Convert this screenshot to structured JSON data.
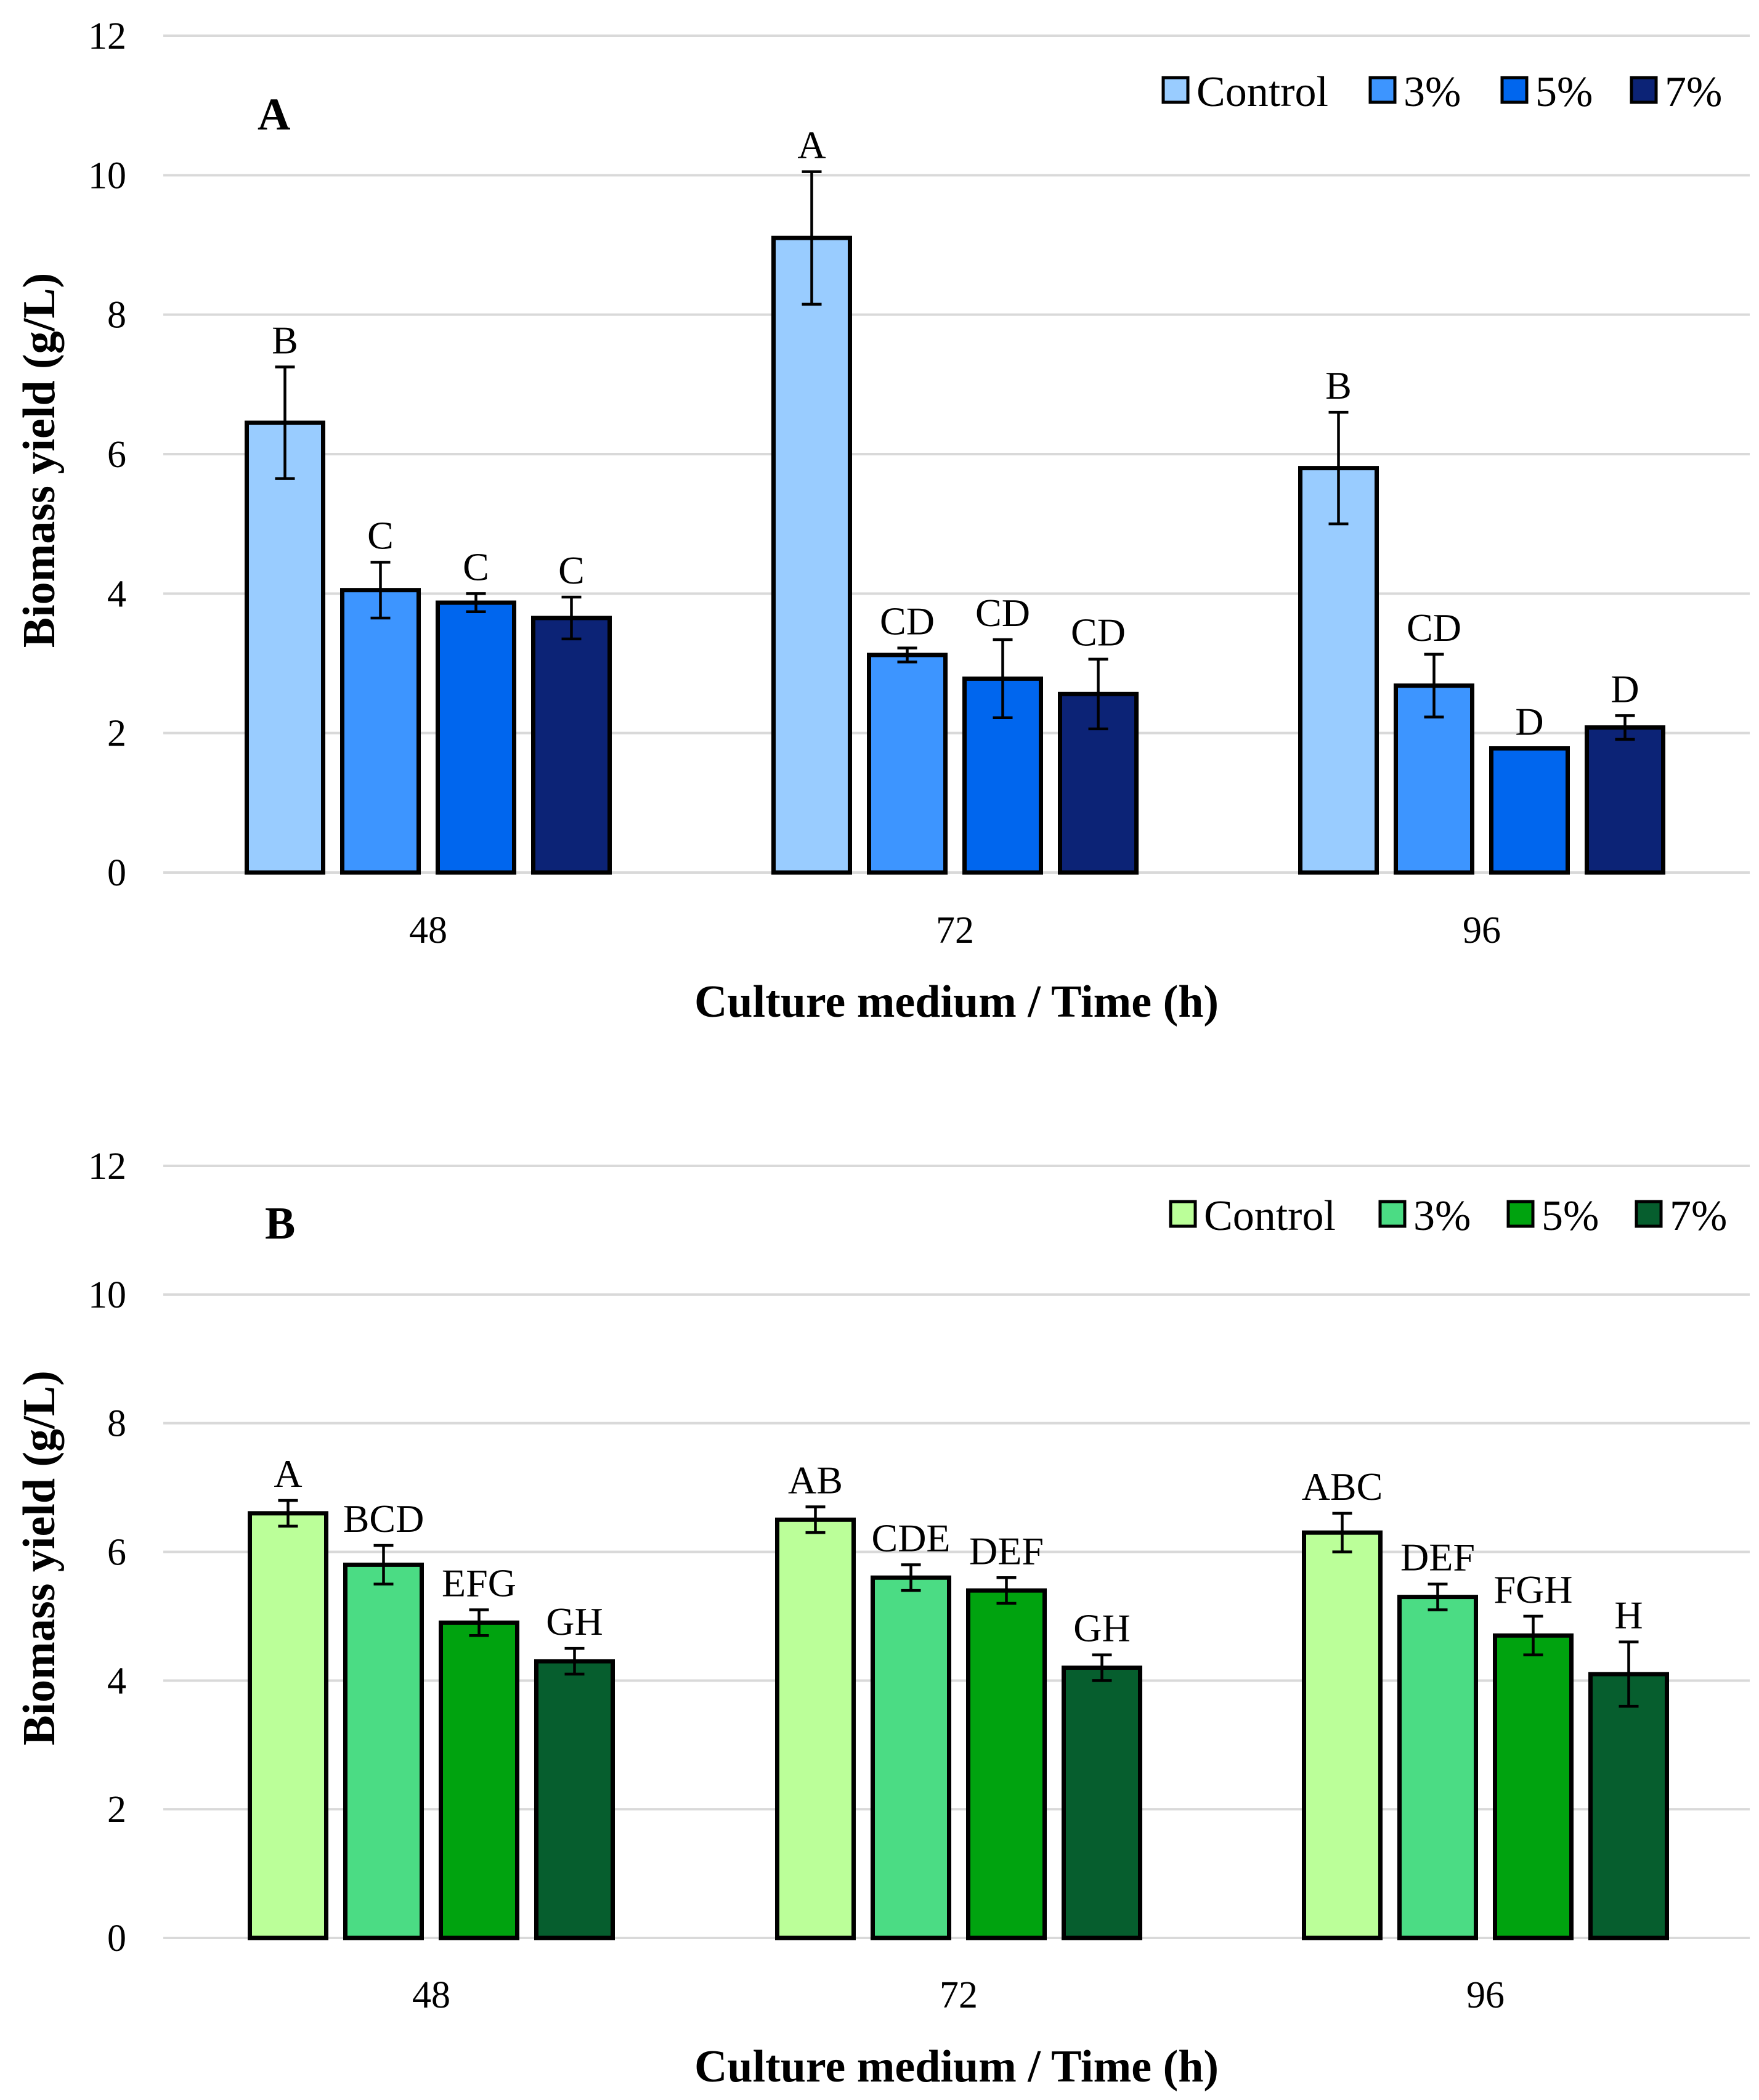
{
  "chart_data": [
    {
      "type": "bar",
      "panel_label": "A",
      "categories": [
        "48",
        "72",
        "96"
      ],
      "xlabel": "Culture medium / Time (h)",
      "ylabel": "Biomass yield (g/L)",
      "ylim": [
        0,
        12
      ],
      "yticks": [
        "0",
        "2",
        "4",
        "6",
        "8",
        "10",
        "12"
      ],
      "grid": true,
      "legend_position": "top-right",
      "colors": [
        "#99ccff",
        "#3d95ff",
        "#0066ee",
        "#0c2376"
      ],
      "series": [
        {
          "name": "Control",
          "values": [
            6.45,
            9.1,
            5.8
          ],
          "errors": [
            0.8,
            0.95,
            0.8
          ],
          "labels": [
            "B",
            "A",
            "B"
          ]
        },
        {
          "name": "3%",
          "values": [
            4.05,
            3.12,
            2.68
          ],
          "errors": [
            0.4,
            0.1,
            0.45
          ],
          "labels": [
            "C",
            "CD",
            "CD"
          ]
        },
        {
          "name": "5%",
          "values": [
            3.87,
            2.78,
            1.78
          ],
          "errors": [
            0.13,
            0.56,
            0.0
          ],
          "labels": [
            "C",
            "CD",
            "D"
          ]
        },
        {
          "name": "7%",
          "values": [
            3.65,
            2.56,
            2.08
          ],
          "errors": [
            0.3,
            0.5,
            0.17
          ],
          "labels": [
            "C",
            "CD",
            "D"
          ]
        }
      ]
    },
    {
      "type": "bar",
      "panel_label": "B",
      "categories": [
        "48",
        "72",
        "96"
      ],
      "xlabel": "Culture medium / Time (h)",
      "ylabel": "Biomass yield (g/L)",
      "ylim": [
        0,
        12
      ],
      "yticks": [
        "0",
        "2",
        "4",
        "6",
        "8",
        "10",
        "12"
      ],
      "grid": true,
      "legend_position": "top-right",
      "colors": [
        "#bbff99",
        "#4bdc84",
        "#00a30f",
        "#065e2e"
      ],
      "series": [
        {
          "name": "Control",
          "values": [
            6.6,
            6.5,
            6.3
          ],
          "errors": [
            0.2,
            0.2,
            0.3
          ],
          "labels": [
            "A",
            "AB",
            "ABC"
          ]
        },
        {
          "name": "3%",
          "values": [
            5.8,
            5.6,
            5.3
          ],
          "errors": [
            0.3,
            0.2,
            0.2
          ],
          "labels": [
            "BCD",
            "CDE",
            "DEF"
          ]
        },
        {
          "name": "5%",
          "values": [
            4.9,
            5.4,
            4.7
          ],
          "errors": [
            0.2,
            0.2,
            0.3
          ],
          "labels": [
            "EFG",
            "DEF",
            "FGH"
          ]
        },
        {
          "name": "7%",
          "values": [
            4.3,
            4.2,
            4.1
          ],
          "errors": [
            0.2,
            0.2,
            0.5
          ],
          "labels": [
            "GH",
            "GH",
            "H"
          ]
        }
      ]
    }
  ]
}
